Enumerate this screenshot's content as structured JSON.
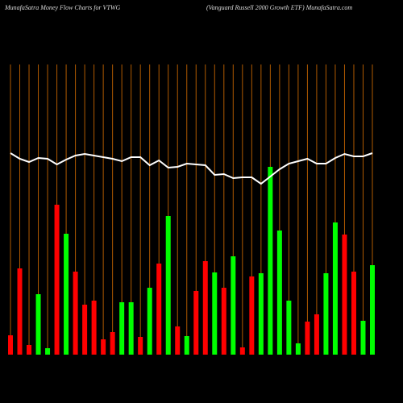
{
  "chart_data": {
    "type": "bar",
    "title": "MunafaSatra  Money Flow  Charts for VTWG",
    "subtitle": "(Vanguard Russell 2000   Growth ETF) MunafaSatra.com",
    "categories": [
      null,
      null,
      null,
      null,
      null,
      null,
      null,
      null,
      null,
      null,
      null,
      null,
      null,
      null,
      null,
      null,
      null,
      null,
      null,
      null,
      null,
      null,
      null,
      null,
      null,
      null,
      null,
      null,
      null,
      null,
      null,
      null,
      null,
      null,
      null,
      null,
      null,
      null,
      null,
      null
    ],
    "values": [
      24,
      107,
      12,
      75,
      8,
      186,
      150,
      103,
      62,
      67,
      19,
      28,
      65,
      65,
      22,
      83,
      113,
      172,
      35,
      23,
      79,
      116,
      102,
      83,
      122,
      9,
      97,
      101,
      233,
      154,
      67,
      14,
      41,
      50,
      101,
      164,
      149,
      103,
      42,
      111
    ],
    "colors": [
      "#ff0000",
      "#ff0000",
      "#ff0000",
      "#00ff00",
      "#00ff00",
      "#ff0000",
      "#00ff00",
      "#ff0000",
      "#ff0000",
      "#ff0000",
      "#ff0000",
      "#ff0000",
      "#00ff00",
      "#00ff00",
      "#ff0000",
      "#00ff00",
      "#ff0000",
      "#00ff00",
      "#ff0000",
      "#00ff00",
      "#ff0000",
      "#ff0000",
      "#00ff00",
      "#ff0000",
      "#00ff00",
      "#ff0000",
      "#ff0000",
      "#00ff00",
      "#00ff00",
      "#00ff00",
      "#00ff00",
      "#00ff00",
      "#ff0000",
      "#ff0000",
      "#00ff00",
      "#00ff00",
      "#ff0000",
      "#ff0000",
      "#00ff00",
      "#00ff00"
    ],
    "line_values": [
      250,
      243,
      239,
      244,
      243,
      236,
      242,
      247,
      249,
      247,
      245,
      243,
      240,
      245,
      245,
      235,
      241,
      232,
      233,
      237,
      236,
      235,
      223,
      224,
      219,
      220,
      220,
      212,
      221,
      230,
      237,
      240,
      243,
      237,
      237,
      244,
      249,
      246,
      246,
      250
    ],
    "line_color": "#ffffff",
    "gridline_color": "#b05a00",
    "ylim": [
      0,
      360
    ]
  }
}
